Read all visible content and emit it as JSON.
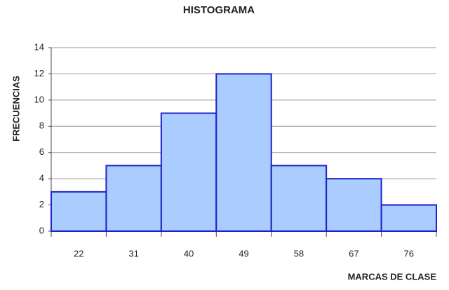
{
  "chart_data": {
    "type": "bar",
    "title": "HISTOGRAMA",
    "x_label": "MARCAS DE CLASE",
    "y_label": "FRECUENCIAS",
    "categories": [
      "22",
      "31",
      "40",
      "49",
      "58",
      "67",
      "76"
    ],
    "values": [
      3,
      5,
      9,
      12,
      5,
      4,
      2
    ],
    "color": "#aaccff",
    "edge_color": "#1f1fcc",
    "ylim": [
      0,
      14
    ],
    "yticks": [
      0,
      2,
      4,
      6,
      8,
      10,
      12,
      14
    ],
    "grid": true
  }
}
